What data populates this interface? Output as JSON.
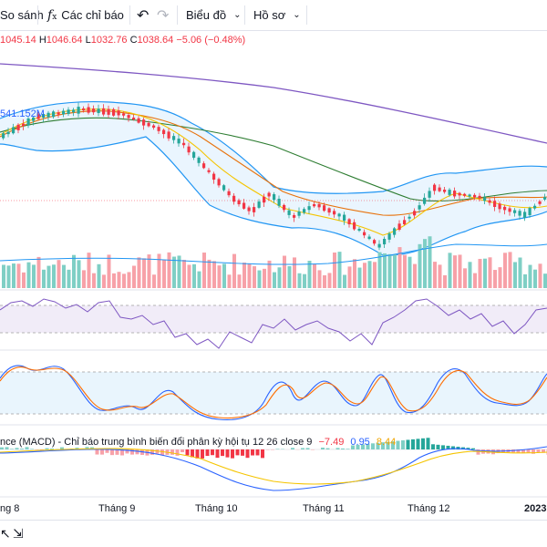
{
  "toolbar": {
    "compare_label": "So sánh",
    "indicators_label": "Các chỉ báo",
    "chart_type_label": "Biểu đồ",
    "profile_label": "Hồ sơ"
  },
  "legend": {
    "open": "1045.14",
    "high_key": "H",
    "high": "1046.64",
    "low_key": "L",
    "low": "1032.76",
    "close_key": "C",
    "close": "1038.64",
    "change": "−5.06 (−0.48%)"
  },
  "volume_label": "541.152M",
  "macd": {
    "label": "nce (MACD) - Chỉ báo trung bình biến đổi phân kỳ hội tụ 12 26 close 9",
    "hist_value": "−7.49",
    "macd_value": "0.95",
    "signal_value": "8.44"
  },
  "time_axis": [
    "ng 8",
    "Tháng 9",
    "Tháng 10",
    "Tháng 11",
    "Tháng 12",
    "2023"
  ],
  "colors": {
    "up": "#26a69a",
    "down": "#f23645",
    "bollinger": "#2196f3",
    "ma_orange": "#e8710a",
    "ma_green": "#2e7d32",
    "ma_yellow": "#f5c400",
    "long_ma": "#7e57c2",
    "rsi": "#7e57c2",
    "stoch_k": "#2962ff",
    "stoch_d": "#ff6d00"
  },
  "icons": {
    "indicators": "fx-icon",
    "undo": "undo-icon",
    "redo": "redo-icon",
    "bottom_left": "cursor-icon",
    "bottom_right": "replay-icon"
  }
}
